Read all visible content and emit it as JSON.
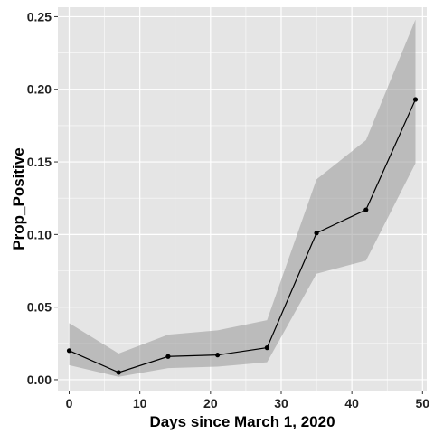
{
  "chart_data": {
    "type": "line",
    "title": "",
    "xlabel": "Days since March 1, 2020",
    "ylabel": "Prop_Positive",
    "x": [
      0,
      7,
      14,
      21,
      28,
      35,
      42,
      49
    ],
    "series": [
      {
        "values": [
          0.02,
          0.005,
          0.016,
          0.017,
          0.022,
          0.101,
          0.117,
          0.193
        ],
        "lower": [
          0.01,
          0.002,
          0.008,
          0.009,
          0.012,
          0.073,
          0.082,
          0.149
        ],
        "upper": [
          0.039,
          0.018,
          0.031,
          0.034,
          0.041,
          0.138,
          0.165,
          0.248
        ]
      }
    ],
    "xlim": [
      -1.6,
      50.6
    ],
    "ylim": [
      -0.0075,
      0.2565
    ],
    "xticks": [
      0,
      10,
      20,
      30,
      40,
      50
    ],
    "yticks": [
      0.0,
      0.05,
      0.1,
      0.15,
      0.2,
      0.25
    ],
    "xtick_labels": [
      "0",
      "10",
      "20",
      "30",
      "40",
      "50"
    ],
    "ytick_labels": [
      "0.00",
      "0.05",
      "0.10",
      "0.15",
      "0.20",
      "0.25"
    ],
    "grid": true,
    "legend": "none",
    "colors": {
      "panel": "#e5e5e5",
      "grid": "#ffffff",
      "ribbon": "#999999",
      "line": "#000000",
      "point": "#000000"
    }
  }
}
